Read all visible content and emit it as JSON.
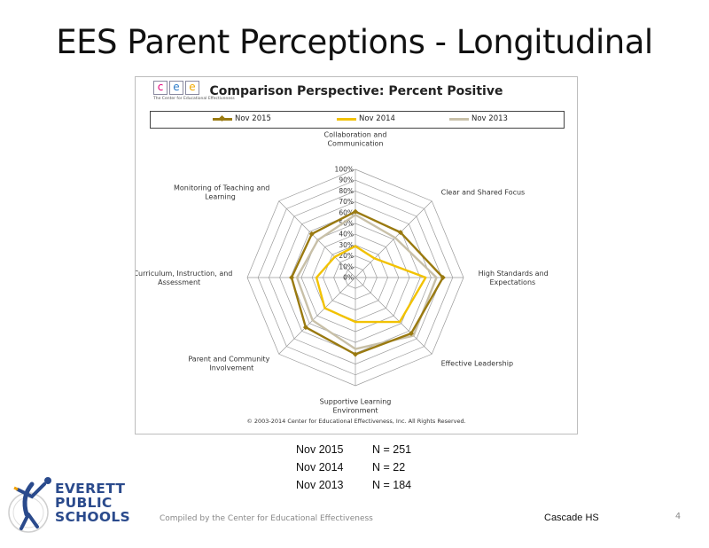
{
  "slide": {
    "title": "EES Parent Perceptions - Longitudinal",
    "footer_compiled": "Compiled by the Center for Educational Effectiveness",
    "footer_school": "Cascade HS",
    "page_number": "4"
  },
  "cee_logo": {
    "letters": [
      "c",
      "e",
      "e"
    ],
    "letter_colors": [
      "#e2007a",
      "#2c7ac8",
      "#f2a900"
    ],
    "tagline": "The Center for Educational Effectiveness"
  },
  "eps_logo": {
    "lines": [
      "EVERETT",
      "PUBLIC",
      "SCHOOLS"
    ],
    "color": "#2a4a8c",
    "accent": "#f0a000"
  },
  "sample_sizes": [
    {
      "label": "Nov 2015",
      "n": "N = 251"
    },
    {
      "label": "Nov 2014",
      "n": "N = 22"
    },
    {
      "label": "Nov 2013",
      "n": "N = 184"
    }
  ],
  "chart_data": {
    "type": "radar",
    "title": "Comparison Perspective: Percent Positive",
    "copyright": "© 2003-2014 Center for Educational Effectiveness, Inc. All Rights Reserved.",
    "axes": [
      [
        "Collaboration and",
        "Communication"
      ],
      [
        "Clear and Shared Focus"
      ],
      [
        "High Standards and",
        "Expectations"
      ],
      [
        "Effective Leadership"
      ],
      [
        "Supportive Learning",
        "Environment"
      ],
      [
        "Parent and Community",
        "Involvement"
      ],
      [
        "Curriculum, Instruction, and",
        "Assessment"
      ],
      [
        "Monitoring of Teaching and",
        "Learning"
      ]
    ],
    "r_ticks": [
      "0%",
      "10%",
      "20%",
      "30%",
      "40%",
      "50%",
      "60%",
      "70%",
      "80%",
      "90%",
      "100%"
    ],
    "r_range": [
      0,
      100
    ],
    "legend_position": "top",
    "series": [
      {
        "name": "Nov 2015",
        "color": "#9a7a10",
        "marker": "diamond",
        "values": [
          61,
          59,
          81,
          73,
          71,
          65,
          59,
          57
        ]
      },
      {
        "name": "Nov 2014",
        "color": "#f2c200",
        "marker": "none",
        "values": [
          29,
          25,
          65,
          58,
          41,
          40,
          36,
          27
        ]
      },
      {
        "name": "Nov 2013",
        "color": "#c8c0a8",
        "marker": "none",
        "values": [
          58,
          52,
          75,
          76,
          66,
          56,
          54,
          49
        ]
      }
    ]
  }
}
